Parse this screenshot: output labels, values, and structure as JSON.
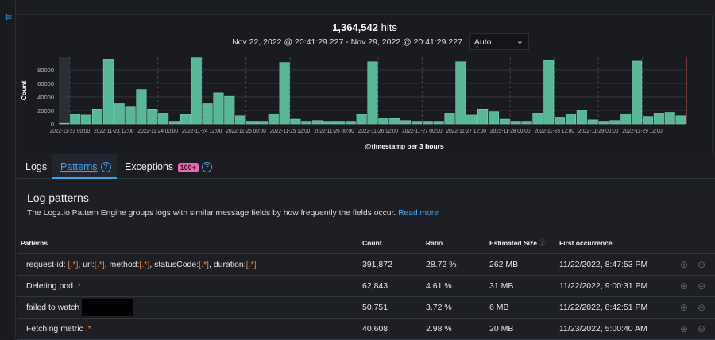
{
  "sidebar": {
    "collapse_icon": "collapse-left-icon"
  },
  "summary": {
    "hits_count": "1,364,542",
    "hits_label": "hits",
    "time_range": "Nov 22, 2022 @ 20:41:29.227 - Nov 29, 2022 @ 20:41:29.227",
    "interval": "Auto"
  },
  "chart_data": {
    "type": "bar",
    "title": "",
    "xlabel": "@timestamp per 3 hours",
    "ylabel": "Count",
    "ylim": [
      0,
      100000
    ],
    "yticks": [
      "0",
      "20000",
      "40000",
      "60000",
      "80000"
    ],
    "xticks": [
      "2022-11-23 00:00",
      "2022-11-23 12:00",
      "2022-11-24 00:00",
      "2022-11-24 12:00",
      "2022-11-25 00:00",
      "2022-11-25 12:00",
      "2022-11-26 00:00",
      "2022-11-26 12:00",
      "2022-11-27 00:00",
      "2022-11-27 12:00",
      "2022-11-28 00:00",
      "2022-11-28 12:00",
      "2022-11-29 00:00",
      "2022-11-29 12:00"
    ],
    "bar_interval_hours": 3,
    "start": "2022-11-22 21:00",
    "values": [
      1000,
      14000,
      13000,
      22000,
      96000,
      30000,
      25000,
      51000,
      22000,
      16000,
      4000,
      14000,
      98000,
      30000,
      46000,
      41000,
      12000,
      4000,
      4000,
      15000,
      91000,
      7000,
      4000,
      5000,
      4000,
      4000,
      4000,
      14000,
      92000,
      9000,
      8000,
      5000,
      4000,
      4000,
      4000,
      16000,
      92000,
      13000,
      22000,
      18000,
      7000,
      4000,
      4000,
      16000,
      94000,
      10000,
      15000,
      20000,
      6000,
      4000,
      5000,
      15000,
      93000,
      11000,
      16000,
      17000,
      12000
    ],
    "color": "#56b897"
  },
  "tabs": [
    {
      "label": "Logs"
    },
    {
      "label": "Patterns"
    },
    {
      "label": "Exceptions",
      "badge": "100+"
    }
  ],
  "patterns": {
    "title": "Log patterns",
    "description": "The Logz.io Pattern Engine groups logs with similar message fields by how frequently the fields occur.",
    "read_more": "Read more",
    "columns": [
      "Patterns",
      "Count",
      "Ratio",
      "Estimated Size",
      "First occurrence"
    ],
    "rows": [
      {
        "parts": [
          "request-id: ",
          "[.*]",
          ", url:",
          "[.*]",
          ", method:",
          "[.*]",
          ", statusCode:",
          "[.*]",
          ", duration:",
          "[.*]"
        ],
        "count": "391,872",
        "ratio": "28.72 %",
        "size": "262 MB",
        "first": "11/22/2022, 8:47:53 PM"
      },
      {
        "parts": [
          "Deleting pod ",
          ".*"
        ],
        "count": "62,843",
        "ratio": "4.61 %",
        "size": "31 MB",
        "first": "11/22/2022, 9:00:31 PM"
      },
      {
        "parts": [
          "failed to watch"
        ],
        "redacted": true,
        "count": "50,751",
        "ratio": "3.72 %",
        "size": "6 MB",
        "first": "11/22/2022, 8:42:51 PM"
      },
      {
        "parts": [
          "Fetching metric ",
          ".*"
        ],
        "count": "40,608",
        "ratio": "2.98 %",
        "size": "20 MB",
        "first": "11/23/2022, 5:00:40 AM"
      }
    ]
  }
}
